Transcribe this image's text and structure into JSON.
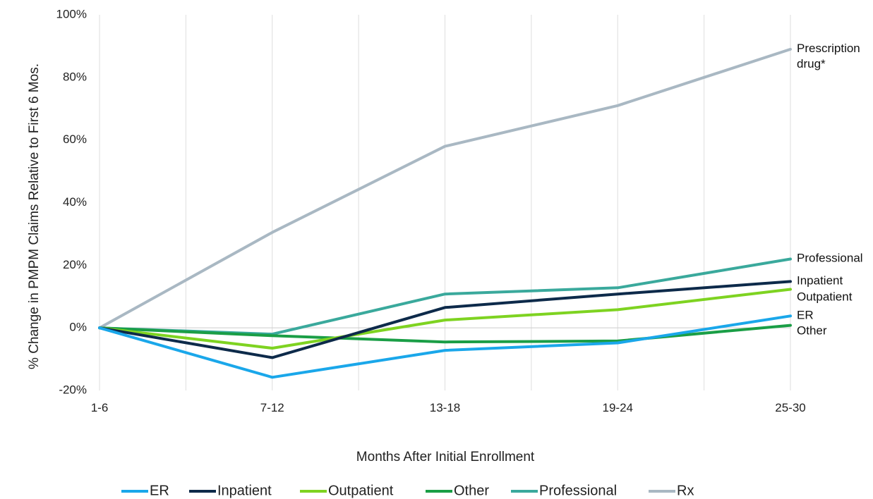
{
  "chart_data": {
    "type": "line",
    "title": "",
    "xlabel": "Months After Initial Enrollment",
    "ylabel": "% Change in PMPM Claims Relative to First 6 Mos.",
    "categories": [
      "1-6",
      "7-12",
      "13-18",
      "19-24",
      "25-30"
    ],
    "ylim": [
      -20,
      100
    ],
    "yticks": [
      -20,
      0,
      20,
      40,
      60,
      80,
      100
    ],
    "ytick_labels": [
      "-20%",
      "0%",
      "20%",
      "40%",
      "60%",
      "80%",
      "100%"
    ],
    "grid": "vertical",
    "legend_position": "bottom",
    "series": [
      {
        "name": "ER",
        "color": "#1aa7ea",
        "values": [
          0,
          -15.8,
          -7.2,
          -4.8,
          3.8
        ],
        "end_label": [
          "ER"
        ]
      },
      {
        "name": "Inpatient",
        "color": "#0d2a4a",
        "values": [
          0,
          -9.5,
          6.5,
          10.8,
          14.8
        ],
        "end_label": [
          "Inpatient"
        ]
      },
      {
        "name": "Outpatient",
        "color": "#7ed321",
        "values": [
          0,
          -6.5,
          2.5,
          5.8,
          12.3
        ],
        "end_label": [
          "Outpatient"
        ]
      },
      {
        "name": "Other",
        "color": "#1a9e46",
        "values": [
          0,
          -2.5,
          -4.5,
          -4.2,
          0.8
        ],
        "end_label": [
          "Other"
        ]
      },
      {
        "name": "Professional",
        "color": "#3aa99c",
        "values": [
          0,
          -2.0,
          10.8,
          12.8,
          22.0
        ],
        "end_label": [
          "Professional"
        ]
      },
      {
        "name": "Rx",
        "color": "#a9b8c3",
        "values": [
          0,
          30.5,
          58.0,
          71.0,
          89.0
        ],
        "end_label": [
          "Prescription",
          "drug*"
        ]
      }
    ]
  }
}
